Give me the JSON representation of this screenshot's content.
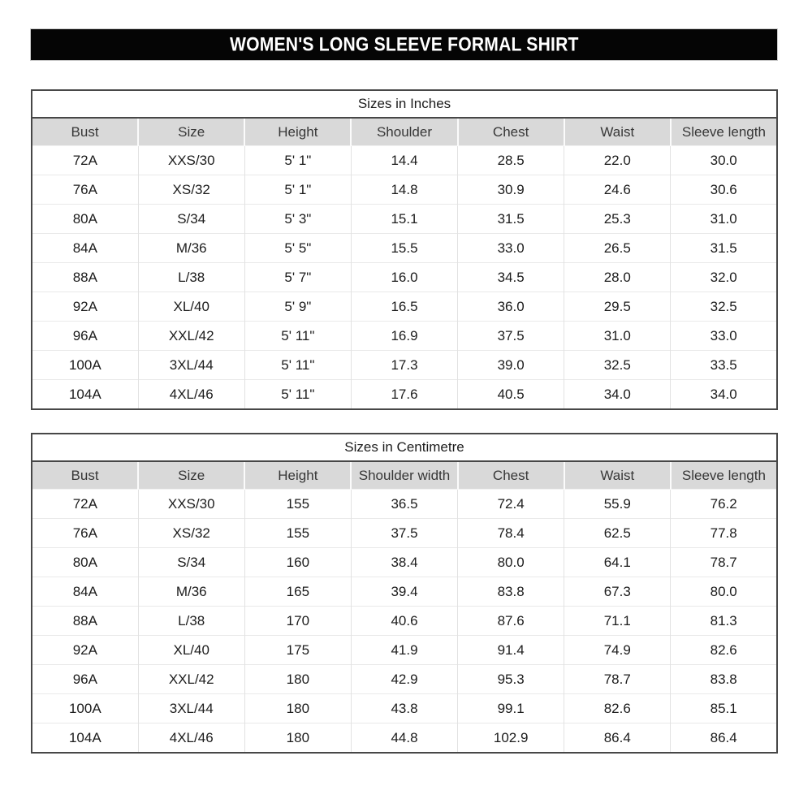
{
  "banner": {
    "title": "WOMEN'S LONG SLEEVE FORMAL SHIRT"
  },
  "colors": {
    "banner_bg": "#050505",
    "banner_text": "#ffffff",
    "header_row_bg": "#d9d9d9",
    "table_border": "#474747",
    "grid_line": "#e2e2e2",
    "text": "#1c1c1c"
  },
  "tables": [
    {
      "title": "Sizes in Inches",
      "columns": [
        "Bust",
        "Size",
        "Height",
        "Shoulder",
        "Chest",
        "Waist",
        "Sleeve length"
      ],
      "rows": [
        [
          "72A",
          "XXS/30",
          "5' 1\"",
          "14.4",
          "28.5",
          "22.0",
          "30.0"
        ],
        [
          "76A",
          "XS/32",
          "5' 1\"",
          "14.8",
          "30.9",
          "24.6",
          "30.6"
        ],
        [
          "80A",
          "S/34",
          "5' 3\"",
          "15.1",
          "31.5",
          "25.3",
          "31.0"
        ],
        [
          "84A",
          "M/36",
          "5' 5\"",
          "15.5",
          "33.0",
          "26.5",
          "31.5"
        ],
        [
          "88A",
          "L/38",
          "5' 7\"",
          "16.0",
          "34.5",
          "28.0",
          "32.0"
        ],
        [
          "92A",
          "XL/40",
          "5' 9\"",
          "16.5",
          "36.0",
          "29.5",
          "32.5"
        ],
        [
          "96A",
          "XXL/42",
          "5' 11\"",
          "16.9",
          "37.5",
          "31.0",
          "33.0"
        ],
        [
          "100A",
          "3XL/44",
          "5' 11\"",
          "17.3",
          "39.0",
          "32.5",
          "33.5"
        ],
        [
          "104A",
          "4XL/46",
          "5' 11\"",
          "17.6",
          "40.5",
          "34.0",
          "34.0"
        ]
      ]
    },
    {
      "title": "Sizes in Centimetre",
      "columns": [
        "Bust",
        "Size",
        "Height",
        "Shoulder width",
        "Chest",
        "Waist",
        "Sleeve length"
      ],
      "rows": [
        [
          "72A",
          "XXS/30",
          "155",
          "36.5",
          "72.4",
          "55.9",
          "76.2"
        ],
        [
          "76A",
          "XS/32",
          "155",
          "37.5",
          "78.4",
          "62.5",
          "77.8"
        ],
        [
          "80A",
          "S/34",
          "160",
          "38.4",
          "80.0",
          "64.1",
          "78.7"
        ],
        [
          "84A",
          "M/36",
          "165",
          "39.4",
          "83.8",
          "67.3",
          "80.0"
        ],
        [
          "88A",
          "L/38",
          "170",
          "40.6",
          "87.6",
          "71.1",
          "81.3"
        ],
        [
          "92A",
          "XL/40",
          "175",
          "41.9",
          "91.4",
          "74.9",
          "82.6"
        ],
        [
          "96A",
          "XXL/42",
          "180",
          "42.9",
          "95.3",
          "78.7",
          "83.8"
        ],
        [
          "100A",
          "3XL/44",
          "180",
          "43.8",
          "99.1",
          "82.6",
          "85.1"
        ],
        [
          "104A",
          "4XL/46",
          "180",
          "44.8",
          "102.9",
          "86.4",
          "86.4"
        ]
      ]
    }
  ]
}
